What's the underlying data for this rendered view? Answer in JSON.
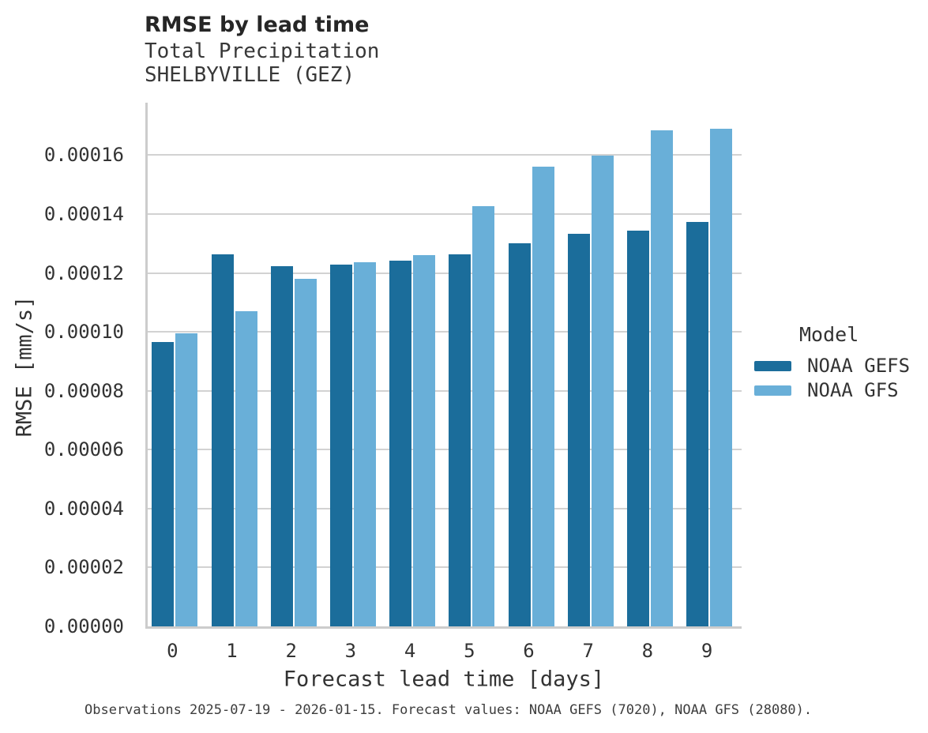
{
  "header": {
    "title": "RMSE by lead time",
    "subtitle_line1": "Total Precipitation",
    "subtitle_line2": "SHELBYVILLE (GEZ)"
  },
  "axes": {
    "xlabel": "Forecast lead time [days]",
    "ylabel": "RMSE [mm/s]"
  },
  "legend": {
    "title": "Model",
    "position": "right"
  },
  "footer": {
    "text": "Observations 2025-07-19 - 2026-01-15. Forecast values: NOAA GEFS (7020), NOAA GFS (28080)."
  },
  "chart_data": {
    "type": "bar",
    "title": "RMSE by lead time",
    "subtitle": "Total Precipitation SHELBYVILLE (GEZ)",
    "xlabel": "Forecast lead time [days]",
    "ylabel": "RMSE [mm/s]",
    "categories": [
      "0",
      "1",
      "2",
      "3",
      "4",
      "5",
      "6",
      "7",
      "8",
      "9"
    ],
    "series": [
      {
        "name": "NOAA GEFS",
        "color": "#1b6d9b",
        "values": [
          9.65e-05,
          0.0001264,
          0.0001222,
          0.0001228,
          0.0001243,
          0.0001263,
          0.00013,
          0.0001334,
          0.0001343,
          0.0001372
        ]
      },
      {
        "name": "NOAA GFS",
        "color": "#69afd8",
        "values": [
          9.95e-05,
          0.000107,
          0.0001181,
          0.0001237,
          0.000126,
          0.0001428,
          0.0001561,
          0.0001598,
          0.0001685,
          0.000169
        ]
      }
    ],
    "ylim": [
      0,
      0.0001778
    ],
    "yticks": [
      0.0,
      2e-05,
      4e-05,
      6e-05,
      8e-05,
      0.0001,
      0.00012,
      0.00014,
      0.00016
    ],
    "ytick_labels": [
      "0.00000",
      "0.00002",
      "0.00004",
      "0.00006",
      "0.00008",
      "0.00010",
      "0.00012",
      "0.00014",
      "0.00016"
    ],
    "grid": true,
    "legend_title": "Model",
    "legend_position": "center right"
  }
}
